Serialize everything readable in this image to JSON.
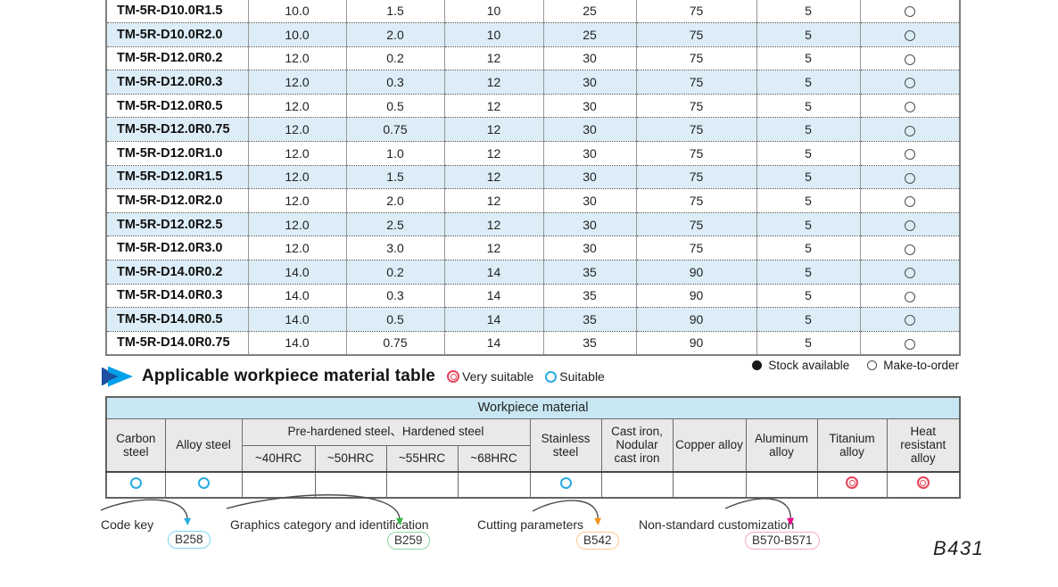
{
  "page_number": "B431",
  "main_table": {
    "rows": [
      {
        "model": "TM-5R-D10.0R1.5",
        "values": [
          "10.0",
          "1.5",
          "10",
          "25",
          "75",
          "5"
        ],
        "stock": "make-to-order"
      },
      {
        "model": "TM-5R-D10.0R2.0",
        "values": [
          "10.0",
          "2.0",
          "10",
          "25",
          "75",
          "5"
        ],
        "stock": "make-to-order"
      },
      {
        "model": "TM-5R-D12.0R0.2",
        "values": [
          "12.0",
          "0.2",
          "12",
          "30",
          "75",
          "5"
        ],
        "stock": "make-to-order"
      },
      {
        "model": "TM-5R-D12.0R0.3",
        "values": [
          "12.0",
          "0.3",
          "12",
          "30",
          "75",
          "5"
        ],
        "stock": "make-to-order"
      },
      {
        "model": "TM-5R-D12.0R0.5",
        "values": [
          "12.0",
          "0.5",
          "12",
          "30",
          "75",
          "5"
        ],
        "stock": "make-to-order"
      },
      {
        "model": "TM-5R-D12.0R0.75",
        "values": [
          "12.0",
          "0.75",
          "12",
          "30",
          "75",
          "5"
        ],
        "stock": "make-to-order"
      },
      {
        "model": "TM-5R-D12.0R1.0",
        "values": [
          "12.0",
          "1.0",
          "12",
          "30",
          "75",
          "5"
        ],
        "stock": "make-to-order"
      },
      {
        "model": "TM-5R-D12.0R1.5",
        "values": [
          "12.0",
          "1.5",
          "12",
          "30",
          "75",
          "5"
        ],
        "stock": "make-to-order"
      },
      {
        "model": "TM-5R-D12.0R2.0",
        "values": [
          "12.0",
          "2.0",
          "12",
          "30",
          "75",
          "5"
        ],
        "stock": "make-to-order"
      },
      {
        "model": "TM-5R-D12.0R2.5",
        "values": [
          "12.0",
          "2.5",
          "12",
          "30",
          "75",
          "5"
        ],
        "stock": "make-to-order"
      },
      {
        "model": "TM-5R-D12.0R3.0",
        "values": [
          "12.0",
          "3.0",
          "12",
          "30",
          "75",
          "5"
        ],
        "stock": "make-to-order"
      },
      {
        "model": "TM-5R-D14.0R0.2",
        "values": [
          "14.0",
          "0.2",
          "14",
          "35",
          "90",
          "5"
        ],
        "stock": "make-to-order"
      },
      {
        "model": "TM-5R-D14.0R0.3",
        "values": [
          "14.0",
          "0.3",
          "14",
          "35",
          "90",
          "5"
        ],
        "stock": "make-to-order"
      },
      {
        "model": "TM-5R-D14.0R0.5",
        "values": [
          "14.0",
          "0.5",
          "14",
          "35",
          "90",
          "5"
        ],
        "stock": "make-to-order"
      },
      {
        "model": "TM-5R-D14.0R0.75",
        "values": [
          "14.0",
          "0.75",
          "14",
          "35",
          "90",
          "5"
        ],
        "stock": "make-to-order"
      }
    ],
    "stock_legend": {
      "available": "Stock available",
      "make_to_order": "Make-to-order"
    }
  },
  "material_section": {
    "title": "Applicable workpiece material table",
    "legend": {
      "very_suitable": "Very suitable",
      "suitable": "Suitable"
    },
    "table": {
      "title": "Workpiece material",
      "left_columns": [
        {
          "label": "Carbon steel",
          "mark": "suitable"
        },
        {
          "label": "Alloy steel",
          "mark": "suitable"
        }
      ],
      "group": {
        "label": "Pre-hardened steel、Hardened steel",
        "sub_columns": [
          {
            "label": "~40HRC",
            "mark": ""
          },
          {
            "label": "~50HRC",
            "mark": ""
          },
          {
            "label": "~55HRC",
            "mark": ""
          },
          {
            "label": "~68HRC",
            "mark": ""
          }
        ]
      },
      "right_columns": [
        {
          "label": "Stainless steel",
          "mark": "suitable"
        },
        {
          "label": "Cast iron, Nodular cast iron",
          "mark": ""
        },
        {
          "label": "Copper alloy",
          "mark": ""
        },
        {
          "label": "Aluminum alloy",
          "mark": ""
        },
        {
          "label": "Titanium alloy",
          "mark": "very-suitable"
        },
        {
          "label": "Heat resistant alloy",
          "mark": "very-suitable"
        }
      ]
    }
  },
  "footer_links": [
    {
      "label": "Code key",
      "page": "B258",
      "accent": "#29abe2",
      "border": "#7fd4f3"
    },
    {
      "label": "Graphics category and identification",
      "page": "B259",
      "accent": "#39b54a",
      "border": "#90d5a2"
    },
    {
      "label": "Cutting parameters",
      "page": "B542",
      "accent": "#f7941d",
      "border": "#fbc98c"
    },
    {
      "label": "Non-standard customization",
      "page": "B570-B571",
      "accent": "#ec008c",
      "border": "#f7a8cd"
    }
  ],
  "colors": {
    "row_alt_bg": "#dcedf8",
    "wp_title_bg": "#c8e7f2",
    "wp_head_bg": "#e9e9e9",
    "suitable_blue": "#29abe2",
    "very_suitable_red": "#e8435a"
  }
}
